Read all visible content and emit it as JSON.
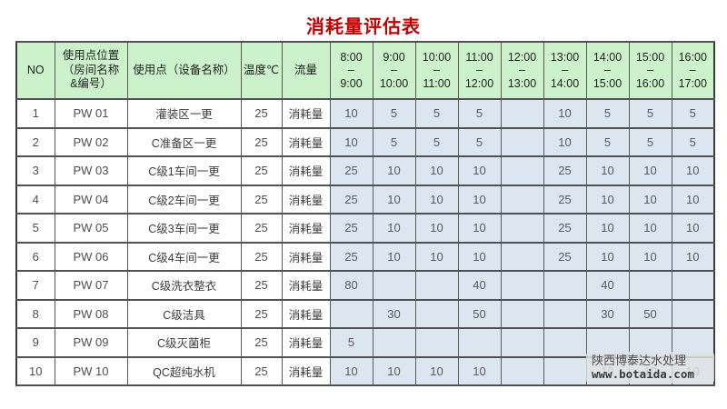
{
  "title": "消耗量评估表",
  "colors": {
    "title": "#c00000",
    "header_bg": "#ccf2cc",
    "value_cell_bg": "#dce6f1",
    "border": "#525252"
  },
  "watermark": {
    "company": "陕西博泰达水处理",
    "url": "www.botaida.com"
  },
  "table": {
    "header": {
      "no": "NO",
      "location": "使用点位置\n（房间名称\n&编号）",
      "point": "使用点（设备名称）",
      "temp": "温度℃",
      "flow": "流量"
    },
    "time_headers": [
      "8:00\n–\n9:00",
      "9:00\n–\n10:00",
      "10:00\n–\n11:00",
      "11:00\n–\n12:00",
      "12:00\n–\n13:00",
      "13:00\n–\n14:00",
      "14:00\n–\n15:00",
      "15:00\n–\n16:00",
      "16:00\n–\n17:00"
    ],
    "rows": [
      {
        "no": "1",
        "location": "PW 01",
        "point": "灌装区一更",
        "temp": "25",
        "flow": "消耗量",
        "values": [
          "10",
          "5",
          "5",
          "5",
          "",
          "10",
          "5",
          "5",
          "5"
        ]
      },
      {
        "no": "2",
        "location": "PW 02",
        "point": "C准备区一更",
        "temp": "25",
        "flow": "消耗量",
        "values": [
          "10",
          "5",
          "5",
          "5",
          "",
          "10",
          "5",
          "5",
          "5"
        ]
      },
      {
        "no": "3",
        "location": "PW 03",
        "point": "C级1车间一更",
        "temp": "25",
        "flow": "消耗量",
        "values": [
          "25",
          "10",
          "10",
          "10",
          "",
          "25",
          "10",
          "10",
          "10"
        ]
      },
      {
        "no": "4",
        "location": "PW 04",
        "point": "C级2车间一更",
        "temp": "25",
        "flow": "消耗量",
        "values": [
          "25",
          "10",
          "10",
          "10",
          "",
          "25",
          "10",
          "10",
          "10"
        ]
      },
      {
        "no": "5",
        "location": "PW 05",
        "point": "C级3车间一更",
        "temp": "25",
        "flow": "消耗量",
        "values": [
          "25",
          "10",
          "10",
          "10",
          "",
          "25",
          "10",
          "10",
          "10"
        ]
      },
      {
        "no": "6",
        "location": "PW 06",
        "point": "C级4车间一更",
        "temp": "25",
        "flow": "消耗量",
        "values": [
          "25",
          "10",
          "10",
          "10",
          "",
          "25",
          "10",
          "10",
          "10"
        ]
      },
      {
        "no": "7",
        "location": "PW 07",
        "point": "C级洗衣整衣",
        "temp": "25",
        "flow": "消耗量",
        "values": [
          "80",
          "",
          "",
          "40",
          "",
          "",
          "40",
          "",
          ""
        ]
      },
      {
        "no": "8",
        "location": "PW 08",
        "point": "C级洁具",
        "temp": "25",
        "flow": "消耗量",
        "values": [
          "",
          "30",
          "",
          "50",
          "",
          "",
          "30",
          "50",
          ""
        ]
      },
      {
        "no": "9",
        "location": "PW 09",
        "point": "C级灭菌柜",
        "temp": "25",
        "flow": "消耗量",
        "values": [
          "5",
          "",
          "",
          "",
          "",
          "",
          "",
          "",
          ""
        ]
      },
      {
        "no": "10",
        "location": "PW 10",
        "point": "QC超纯水机",
        "temp": "25",
        "flow": "消耗量",
        "values": [
          "10",
          "10",
          "10",
          "10",
          "",
          "",
          "10",
          "10",
          "10"
        ]
      }
    ]
  }
}
